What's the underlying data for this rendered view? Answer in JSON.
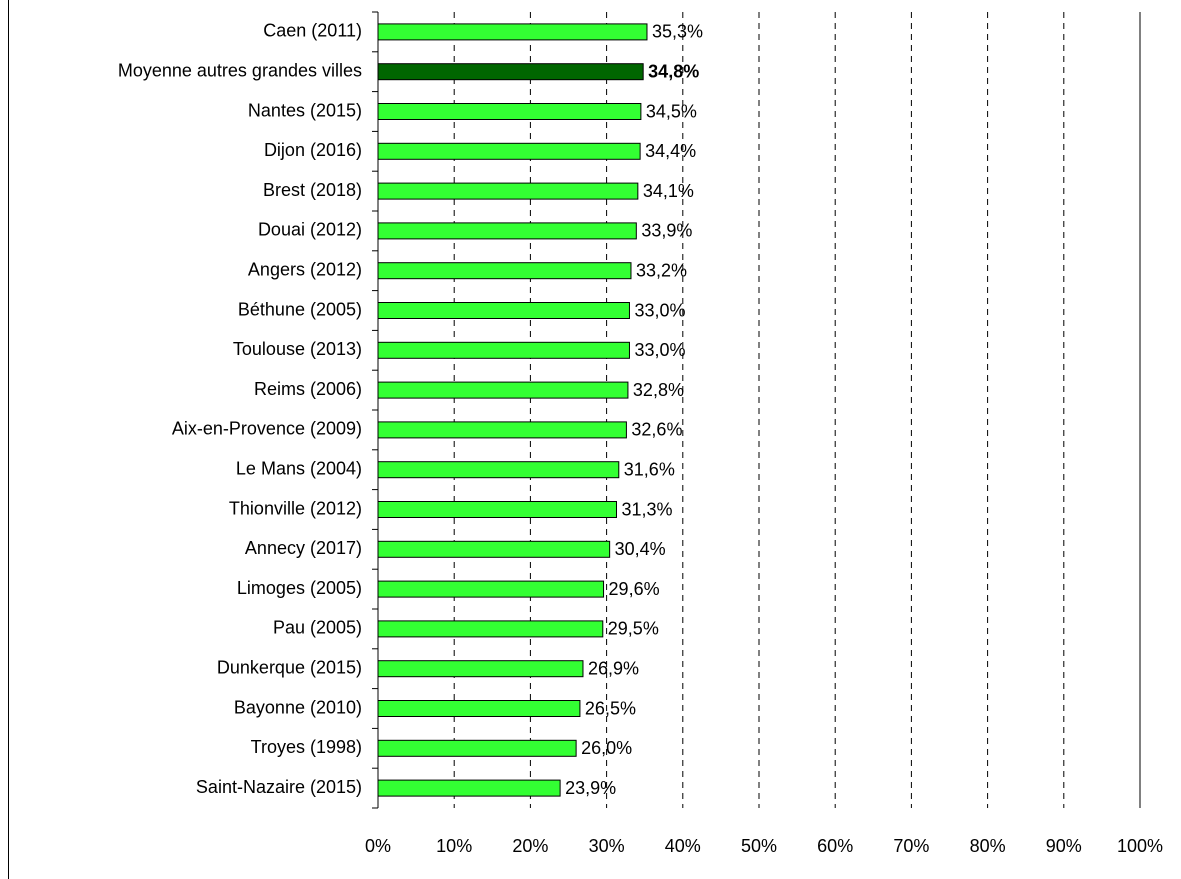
{
  "chart_data": {
    "type": "barh",
    "categories": [
      "Caen (2011)",
      "Moyenne autres grandes villes",
      "Nantes (2015)",
      "Dijon (2016)",
      "Brest (2018)",
      "Douai (2012)",
      "Angers (2012)",
      "Béthune (2005)",
      "Toulouse (2013)",
      "Reims (2006)",
      "Aix-en-Provence (2009)",
      "Le Mans (2004)",
      "Thionville (2012)",
      "Annecy (2017)",
      "Limoges (2005)",
      "Pau (2005)",
      "Dunkerque (2015)",
      "Bayonne (2010)",
      "Troyes (1998)",
      "Saint-Nazaire (2015)"
    ],
    "values": [
      35.3,
      34.8,
      34.5,
      34.4,
      34.1,
      33.9,
      33.2,
      33.0,
      33.0,
      32.8,
      32.6,
      31.6,
      31.3,
      30.4,
      29.6,
      29.5,
      26.9,
      26.5,
      26.0,
      23.9
    ],
    "value_labels": [
      "35,3%",
      "34,8%",
      "34,5%",
      "34,4%",
      "34,1%",
      "33,9%",
      "33,2%",
      "33,0%",
      "33,0%",
      "32,8%",
      "32,6%",
      "31,6%",
      "31,3%",
      "30,4%",
      "29,6%",
      "29,5%",
      "26,9%",
      "26,5%",
      "26,0%",
      "23,9%"
    ],
    "colors": [
      "#33ff33",
      "#006600",
      "#33ff33",
      "#33ff33",
      "#33ff33",
      "#33ff33",
      "#33ff33",
      "#33ff33",
      "#33ff33",
      "#33ff33",
      "#33ff33",
      "#33ff33",
      "#33ff33",
      "#33ff33",
      "#33ff33",
      "#33ff33",
      "#33ff33",
      "#33ff33",
      "#33ff33",
      "#33ff33"
    ],
    "bold": [
      false,
      true,
      false,
      false,
      false,
      false,
      false,
      false,
      false,
      false,
      false,
      false,
      false,
      false,
      false,
      false,
      false,
      false,
      false,
      false
    ],
    "xlim": [
      0,
      100
    ],
    "xticks": [
      {
        "value": 0,
        "label": "0%"
      },
      {
        "value": 10,
        "label": "10%"
      },
      {
        "value": 20,
        "label": "20%"
      },
      {
        "value": 30,
        "label": "30%"
      },
      {
        "value": 40,
        "label": "40%"
      },
      {
        "value": 50,
        "label": "50%"
      },
      {
        "value": 60,
        "label": "60%"
      },
      {
        "value": 70,
        "label": "70%"
      },
      {
        "value": 80,
        "label": "80%"
      },
      {
        "value": 90,
        "label": "90%"
      },
      {
        "value": 100,
        "label": "100%"
      }
    ],
    "grid": true
  }
}
